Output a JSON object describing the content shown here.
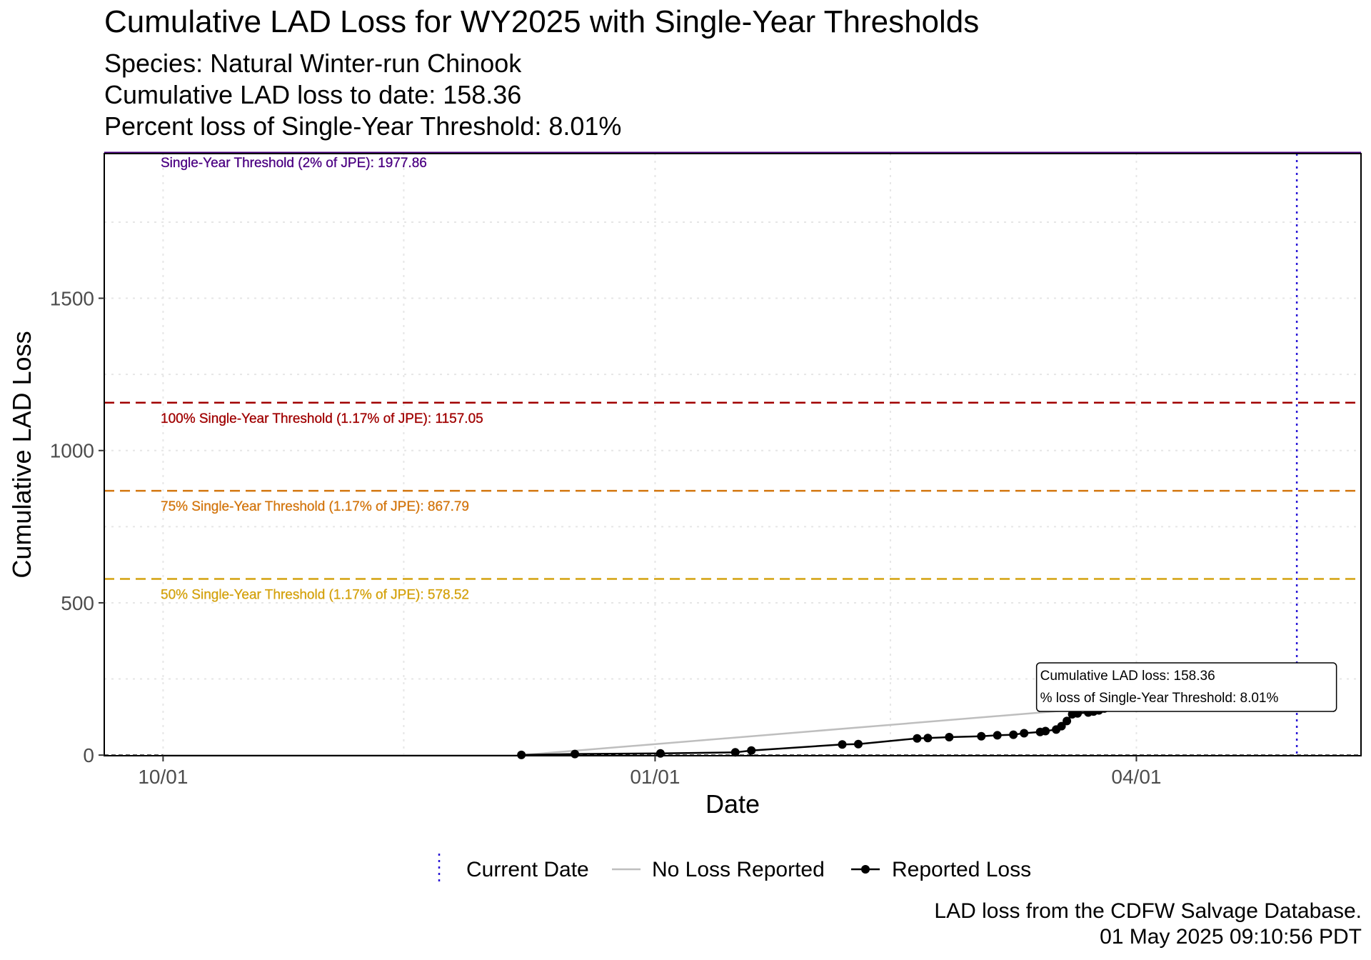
{
  "chart_data": {
    "type": "line",
    "title": "Cumulative LAD Loss for WY2025 with Single-Year Thresholds",
    "subtitles": [
      "Species: Natural Winter-run Chinook",
      "Cumulative LAD loss to date: 158.36",
      "Percent loss of Single-Year Threshold: 8.01%"
    ],
    "xlabel": "Date",
    "ylabel": "Cumulative LAD Loss",
    "x_ticks": [
      "10/01",
      "01/01",
      "04/01"
    ],
    "y_ticks": [
      0,
      500,
      1000,
      1500
    ],
    "xlim": [
      "2024-09-20",
      "2025-05-13"
    ],
    "ylim": [
      -2,
      1975
    ],
    "grid": true,
    "legend_position": "bottom",
    "colors": {
      "reported": "#000000",
      "no_loss": "#bebebe",
      "current_date": "#2b18d6",
      "t100": "#a00000",
      "t75": "#d3760f",
      "t50": "#d4a20e",
      "single_year": "#4b0082"
    },
    "thresholds": [
      {
        "value": 1977.86,
        "label": "Single-Year Threshold (2% of JPE): 1977.86",
        "color": "#4b0082",
        "line": "solid"
      },
      {
        "value": 1157.05,
        "label": "100% Single-Year Threshold (1.17% of JPE): 1157.05",
        "color": "#a00000",
        "line": "dashed"
      },
      {
        "value": 867.79,
        "label": "75% Single-Year Threshold (1.17% of JPE): 867.79",
        "color": "#d3760f",
        "line": "dashed"
      },
      {
        "value": 578.52,
        "label": "50% Single-Year Threshold (1.17% of JPE): 578.52",
        "color": "#d4a20e",
        "line": "dashed"
      }
    ],
    "current_date": "2025-05-01",
    "series": [
      {
        "name": "No Loss Reported",
        "color": "#bebebe",
        "points": [
          {
            "x": "2024-10-01",
            "y": 0
          },
          {
            "x": "2024-12-07",
            "y": 0
          },
          {
            "x": "2025-03-27",
            "y": 158.36
          },
          {
            "x": "2025-05-01",
            "y": 158.36
          }
        ]
      },
      {
        "name": "Reported Loss",
        "color": "#000000",
        "points": [
          {
            "x": "2024-12-07",
            "y": 0.6
          },
          {
            "x": "2024-12-17",
            "y": 3.5
          },
          {
            "x": "2025-01-02",
            "y": 5.5
          },
          {
            "x": "2025-01-16",
            "y": 9
          },
          {
            "x": "2025-01-19",
            "y": 15
          },
          {
            "x": "2025-02-05",
            "y": 35
          },
          {
            "x": "2025-02-08",
            "y": 36
          },
          {
            "x": "2025-02-19",
            "y": 55
          },
          {
            "x": "2025-02-21",
            "y": 56
          },
          {
            "x": "2025-02-25",
            "y": 59
          },
          {
            "x": "2025-03-03",
            "y": 62
          },
          {
            "x": "2025-03-06",
            "y": 65
          },
          {
            "x": "2025-03-09",
            "y": 67
          },
          {
            "x": "2025-03-11",
            "y": 72
          },
          {
            "x": "2025-03-14",
            "y": 76
          },
          {
            "x": "2025-03-15",
            "y": 79
          },
          {
            "x": "2025-03-17",
            "y": 84
          },
          {
            "x": "2025-03-18",
            "y": 95
          },
          {
            "x": "2025-03-19",
            "y": 112
          },
          {
            "x": "2025-03-20",
            "y": 134
          },
          {
            "x": "2025-03-21",
            "y": 137
          },
          {
            "x": "2025-03-23",
            "y": 140
          },
          {
            "x": "2025-03-24",
            "y": 143
          },
          {
            "x": "2025-03-25",
            "y": 147
          },
          {
            "x": "2025-03-26",
            "y": 153
          },
          {
            "x": "2025-03-27",
            "y": 158.36
          }
        ]
      }
    ],
    "annotation": {
      "x": "2025-03-14",
      "y": 158.36,
      "lines": [
        "Cumulative LAD loss: 158.36",
        "% loss of Single-Year Threshold: 8.01%"
      ]
    },
    "legend": [
      {
        "key": "current",
        "label": "Current Date",
        "icon": "dotted-vertical-line"
      },
      {
        "key": "no_loss",
        "label": "No Loss Reported",
        "icon": "grey-line"
      },
      {
        "key": "reported",
        "label": "Reported Loss",
        "icon": "line-with-point"
      }
    ]
  },
  "caption": [
    "LAD loss from the CDFW Salvage Database.",
    "01 May 2025 09:10:56 PDT"
  ]
}
